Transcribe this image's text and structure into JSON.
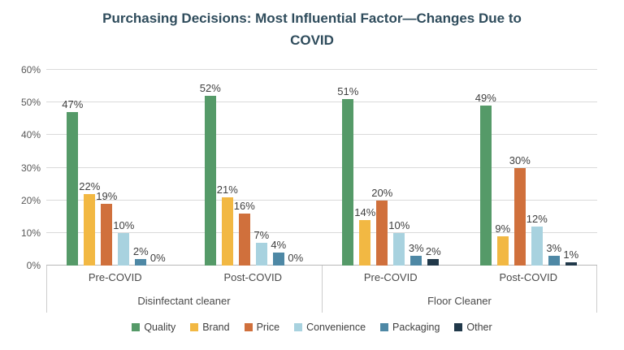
{
  "title": {
    "lines": [
      "Purchasing Decisions: Most Influential Factor—Changes Due to",
      "COVID"
    ]
  },
  "chart_data": {
    "type": "bar",
    "title": "Purchasing Decisions: Most Influential Factor—Changes Due to COVID",
    "ylim": [
      0,
      60
    ],
    "ytick_labels": [
      "0%",
      "10%",
      "20%",
      "30%",
      "40%",
      "50%",
      "60%"
    ],
    "grid": true,
    "legend_position": "bottom",
    "groups": [
      {
        "period": "Pre-COVID",
        "category": "Disinfectant cleaner"
      },
      {
        "period": "Post-COVID",
        "category": "Disinfectant cleaner"
      },
      {
        "period": "Pre-COVID",
        "category": "Floor Cleaner"
      },
      {
        "period": "Post-COVID",
        "category": "Floor Cleaner"
      }
    ],
    "category_axis": [
      {
        "label": "Disinfectant cleaner",
        "span": 2
      },
      {
        "label": "Floor Cleaner",
        "span": 2
      }
    ],
    "series": [
      {
        "name": "Quality",
        "color": "#559A68",
        "values": [
          47,
          52,
          51,
          49
        ]
      },
      {
        "name": "Brand",
        "color": "#F2B843",
        "values": [
          22,
          21,
          14,
          9
        ]
      },
      {
        "name": "Price",
        "color": "#D0703C",
        "values": [
          19,
          16,
          20,
          30
        ]
      },
      {
        "name": "Convenience",
        "color": "#A8D2DF",
        "values": [
          10,
          7,
          10,
          12
        ]
      },
      {
        "name": "Packaging",
        "color": "#4E88A5",
        "values": [
          2,
          4,
          3,
          3
        ]
      },
      {
        "name": "Other",
        "color": "#21394A",
        "values": [
          0,
          0,
          2,
          1
        ]
      }
    ],
    "data_label_suffix": "%"
  }
}
